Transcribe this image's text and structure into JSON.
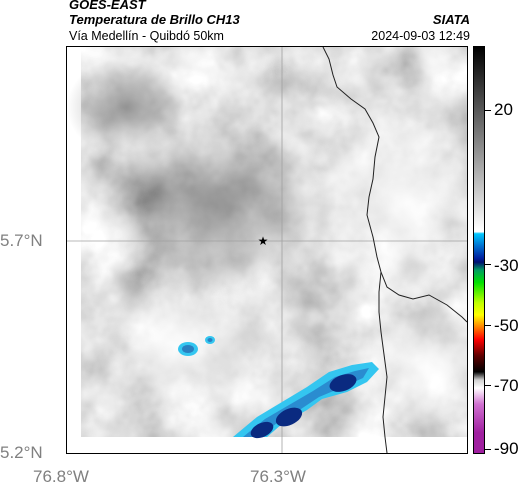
{
  "header": {
    "satellite": "GOES-EAST",
    "product": "Temperatura de Brillo CH13",
    "organization": "SIATA",
    "region": "Vía Medellín - Quibdó 50km",
    "datetime": "2024-09-03 12:49"
  },
  "axes": {
    "lat_labels": [
      "5.7°N",
      "5.2°N"
    ],
    "lon_labels": [
      "76.8°W",
      "76.3°W"
    ]
  },
  "colorbar": {
    "ticks": [
      "20",
      "-30",
      "-50",
      "-70",
      "-90"
    ]
  },
  "colors": {
    "cloud_cold": "#0a2a80",
    "cloud_mid": "#2a8cd0",
    "cloud_edge": "#34c6f0",
    "border_line": "#202020",
    "grid_line": "#a0a0a0"
  }
}
